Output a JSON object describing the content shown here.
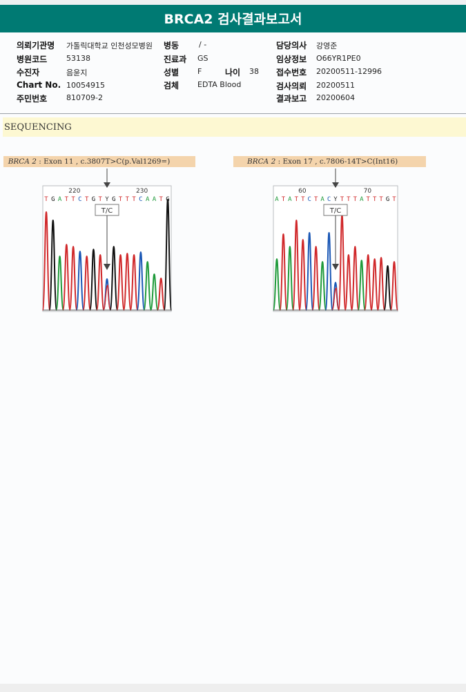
{
  "report": {
    "title": "BRCA2 검사결과보고서",
    "fields": {
      "requesting_institution_label": "의뢰기관명",
      "requesting_institution": "가톨릭대학교 인천성모병원",
      "ward_label": "병동",
      "ward": "/ -",
      "doctor_label": "담당의사",
      "doctor": "강영준",
      "hospital_code_label": "병원코드",
      "hospital_code": "53138",
      "department_label": "진료과",
      "department": "GS",
      "clinical_info_label": "임상정보",
      "clinical_info": "O66YR1PE0",
      "patient_label": "수진자",
      "patient": "음윤지",
      "sex_label": "성별",
      "sex": "F",
      "age_label": "나이",
      "age": "38",
      "accession_label": "접수번호",
      "accession": "20200511-12996",
      "chart_label": "Chart No.",
      "chart": "10054915",
      "specimen_label": "검체",
      "specimen": "EDTA Blood",
      "test_request_label": "검사의뢰",
      "test_request": "20200511",
      "resident_label": "주민번호",
      "resident": "810709-2",
      "result_report_label": "결과보고",
      "result_report": "20200604"
    }
  },
  "sequencing": {
    "section_title": "SEQUENCING",
    "panels": [
      {
        "gene": "BRCA 2",
        "variant": " : Exon 11 , c.3807T>C(p.Val1269=)",
        "pos_left": "220",
        "pos_right": "230",
        "sequence": [
          "T",
          "G",
          "A",
          "T",
          "T",
          "C",
          "T",
          "G",
          "T",
          "Y",
          "G",
          "T",
          "T",
          "T",
          "C",
          "A",
          "A",
          "T",
          "G"
        ],
        "call": "T/C"
      },
      {
        "gene": "BRCA 2",
        "variant": " : Exon 17 , c.7806-14T>C(Int16)",
        "pos_left": "60",
        "pos_right": "70",
        "sequence": [
          "A",
          "T",
          "A",
          "T",
          "T",
          "C",
          "T",
          "A",
          "C",
          "Y",
          "T",
          "T",
          "T",
          "A",
          "T",
          "T",
          "T",
          "G",
          "T"
        ],
        "call": "T/C"
      }
    ]
  },
  "colors": {
    "header_bg": "#007a73",
    "base_A": "#1f9a3a",
    "base_C": "#1a57b5",
    "base_G": "#111111",
    "base_T": "#d0282a",
    "base_Y": "#333333"
  }
}
